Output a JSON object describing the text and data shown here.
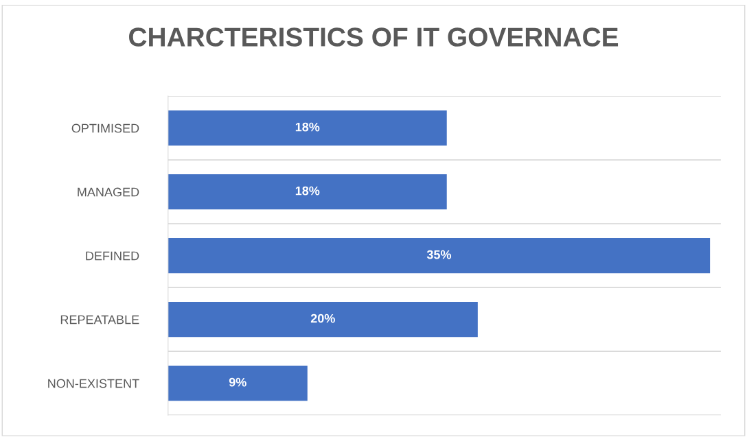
{
  "chart_data": {
    "type": "bar",
    "orientation": "horizontal",
    "title": "CHARCTERISTICS OF IT GOVERNACE",
    "categories": [
      "OPTIMISED",
      "MANAGED",
      "DEFINED",
      "REPEATABLE",
      "NON-EXISTENT"
    ],
    "values": [
      18,
      18,
      35,
      20,
      9
    ],
    "value_labels": [
      "18%",
      "18%",
      "35%",
      "20%",
      "9%"
    ],
    "color": "#4472c4",
    "grid": "y",
    "legend": false
  }
}
